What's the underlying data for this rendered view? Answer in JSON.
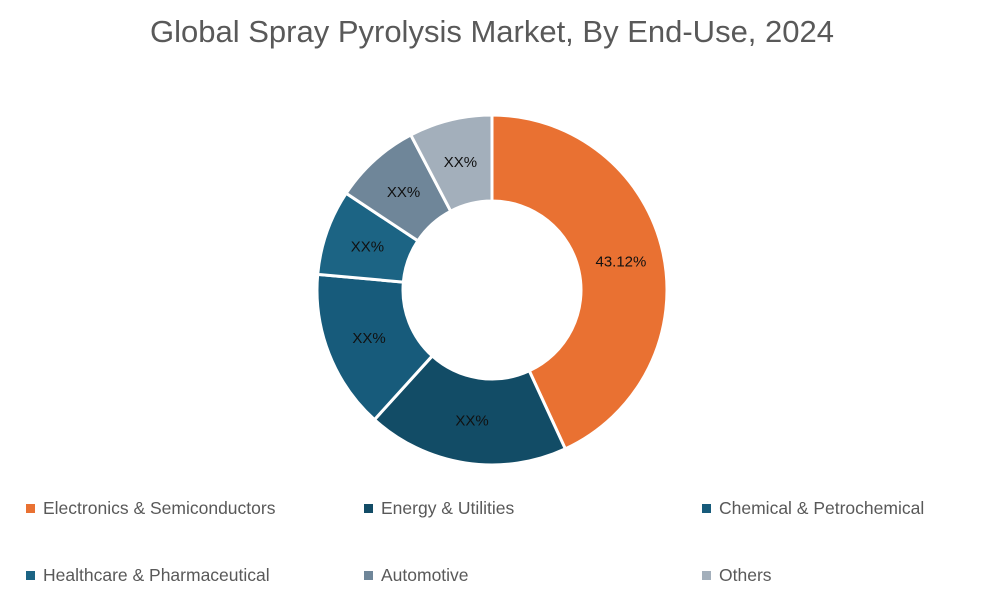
{
  "chart_data": {
    "type": "pie",
    "subtype": "donut",
    "title": "Global Spray Pyrolysis Market, By End-Use, 2024",
    "categories": [
      "Electronics & Semiconductors",
      "Energy & Utilities",
      "Chemical & Petrochemical",
      "Healthcare & Pharmaceutical",
      "Automotive",
      "Others"
    ],
    "values": [
      43.12,
      18.6,
      14.7,
      7.9,
      8.0,
      7.68
    ],
    "data_labels": [
      "43.12%",
      "XX%",
      "XX%",
      "XX%",
      "XX%",
      "XX%"
    ],
    "colors": [
      "#E97132",
      "#124C66",
      "#175B7B",
      "#1C6484",
      "#6F8699",
      "#A3AFBB"
    ],
    "legend_position": "bottom",
    "start_angle_deg": 0,
    "direction": "clockwise"
  },
  "title": "Global Spray Pyrolysis Market, By End-Use, 2024",
  "legend": [
    {
      "label": "Electronics & Semiconductors",
      "color": "#E97132"
    },
    {
      "label": "Energy & Utilities",
      "color": "#124C66"
    },
    {
      "label": "Chemical & Petrochemical",
      "color": "#175B7B"
    },
    {
      "label": "Healthcare & Pharmaceutical",
      "color": "#1C6484"
    },
    {
      "label": "Automotive",
      "color": "#6F8699"
    },
    {
      "label": "Others",
      "color": "#A3AFBB"
    }
  ]
}
